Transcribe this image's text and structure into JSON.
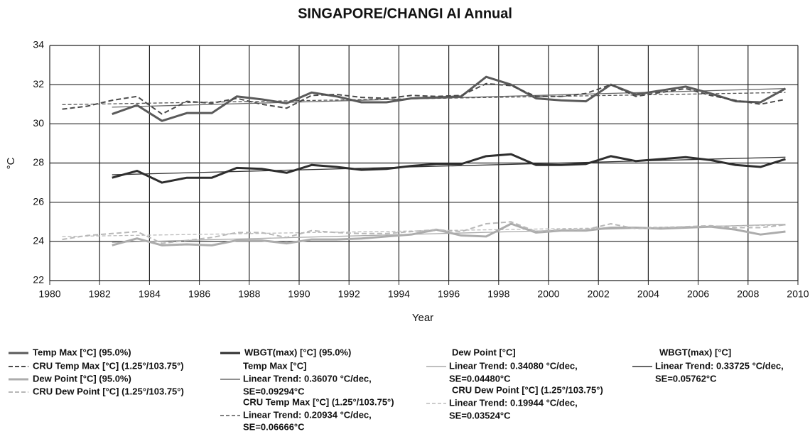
{
  "chart_data": {
    "type": "line",
    "title": "SINGAPORE/CHANGI AI Annual",
    "x_label": "Year",
    "y_label": "°C",
    "xlim": [
      1980,
      2010
    ],
    "xticks": [
      1980,
      1982,
      1984,
      1986,
      1988,
      1990,
      1992,
      1994,
      1996,
      1998,
      2000,
      2002,
      2004,
      2006,
      2008,
      2010
    ],
    "ylim": [
      22,
      34
    ],
    "yticks": [
      22,
      24,
      26,
      28,
      30,
      32,
      34
    ],
    "grid": true,
    "x": [
      1980.5,
      1981.5,
      1982.5,
      1983.5,
      1984.5,
      1985.5,
      1986.5,
      1987.5,
      1988.5,
      1989.5,
      1990.5,
      1991.5,
      1992.5,
      1993.5,
      1994.5,
      1995.5,
      1996.5,
      1997.5,
      1998.5,
      1999.5,
      2000.5,
      2001.5,
      2002.5,
      2003.5,
      2004.5,
      2005.5,
      2006.5,
      2007.5,
      2008.5,
      2009.5
    ],
    "series": [
      {
        "name": "Temp Max [°C] (95.0%)",
        "color": "#5a5a5a",
        "dashed": false,
        "width": 3,
        "values": [
          null,
          null,
          30.5,
          30.95,
          30.15,
          30.55,
          30.55,
          31.4,
          31.25,
          31.05,
          31.6,
          31.4,
          31.1,
          31.1,
          31.3,
          31.35,
          31.4,
          32.4,
          32.0,
          31.3,
          31.2,
          31.15,
          32.0,
          31.5,
          31.7,
          31.9,
          31.55,
          31.15,
          31.1,
          31.8
        ]
      },
      {
        "name": "CRU Temp Max [°C] (1.25°/103.75°)",
        "color": "#4a4a4a",
        "dashed": true,
        "width": 2,
        "values": [
          30.75,
          30.9,
          31.2,
          31.4,
          30.5,
          31.15,
          31.05,
          31.3,
          31.0,
          30.8,
          31.45,
          31.5,
          31.35,
          31.3,
          31.45,
          31.4,
          31.45,
          32.05,
          31.95,
          31.4,
          31.4,
          31.55,
          32.0,
          31.4,
          31.6,
          31.8,
          31.45,
          31.2,
          31.0,
          31.25
        ]
      },
      {
        "name": "Dew Point [°C] (95.0%)",
        "color": "#acacac",
        "dashed": false,
        "width": 3,
        "values": [
          null,
          null,
          23.8,
          24.15,
          23.8,
          23.85,
          23.8,
          24.05,
          24.05,
          23.9,
          24.1,
          24.1,
          24.15,
          24.25,
          24.35,
          24.6,
          24.3,
          24.25,
          24.9,
          24.45,
          24.55,
          24.55,
          24.7,
          24.7,
          24.65,
          24.7,
          24.75,
          24.6,
          24.35,
          24.5
        ]
      },
      {
        "name": "CRU Dew Point [°C] (1.25°/103.75°)",
        "color": "#b8b8b8",
        "dashed": true,
        "width": 2,
        "values": [
          24.1,
          24.3,
          24.4,
          24.5,
          23.9,
          24.05,
          24.2,
          24.45,
          24.45,
          24.2,
          24.55,
          24.45,
          24.4,
          24.4,
          24.5,
          24.6,
          24.5,
          24.9,
          25.0,
          24.5,
          24.6,
          24.6,
          24.9,
          24.65,
          24.7,
          24.75,
          24.8,
          24.7,
          24.7,
          24.85
        ]
      },
      {
        "name": "WBGT(max) [°C] (95.0%)",
        "color": "#2e2e2e",
        "dashed": false,
        "width": 3,
        "values": [
          null,
          null,
          27.25,
          27.6,
          27.0,
          27.25,
          27.25,
          27.75,
          27.7,
          27.5,
          27.9,
          27.8,
          27.65,
          27.7,
          27.85,
          27.95,
          27.95,
          28.35,
          28.45,
          27.9,
          27.9,
          27.95,
          28.35,
          28.1,
          28.2,
          28.3,
          28.15,
          27.9,
          27.8,
          28.2
        ]
      }
    ],
    "trends": [
      {
        "title": "Temp Max [°C]",
        "label": [
          "Linear Trend: 0.36070 °C/dec,",
          "SE=0.09294°C"
        ],
        "color": "#6a6a6a",
        "dashed": false,
        "x": [
          1982.5,
          2009.5
        ],
        "values": [
          30.85,
          31.8
        ]
      },
      {
        "title": "CRU Temp Max [°C] (1.25°/103.75°)",
        "label": [
          "Linear Trend: 0.20934 °C/dec,",
          "SE=0.06666°C"
        ],
        "color": "#555555",
        "dashed": true,
        "x": [
          1980.5,
          2009.5
        ],
        "values": [
          30.98,
          31.6
        ]
      },
      {
        "title": "Dew Point [°C]",
        "label": [
          "Linear Trend: 0.34080 °C/dec,",
          "SE=0.04480°C"
        ],
        "color": "#aaaaaa",
        "dashed": false,
        "x": [
          1982.5,
          2009.5
        ],
        "values": [
          23.95,
          24.87
        ]
      },
      {
        "title": "CRU Dew Point [°C] (1.25°/103.75°)",
        "label": [
          "Linear Trend: 0.19944 °C/dec,",
          "SE=0.03524°C"
        ],
        "color": "#bbbbbb",
        "dashed": true,
        "x": [
          1980.5,
          2009.5
        ],
        "values": [
          24.25,
          24.83
        ]
      },
      {
        "title": "WBGT(max) [°C]",
        "label": [
          "Linear Trend: 0.33725 °C/dec,",
          "SE=0.05762°C"
        ],
        "color": "#333333",
        "dashed": false,
        "x": [
          1982.5,
          2009.5
        ],
        "values": [
          27.4,
          28.3
        ]
      }
    ]
  }
}
